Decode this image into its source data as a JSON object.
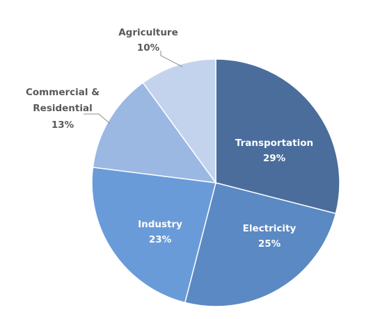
{
  "chart_data": {
    "type": "pie",
    "title": "",
    "legend": "none",
    "slices": [
      {
        "name": "Transportation",
        "value": 29,
        "label": "29%",
        "color": "#4a6d9c"
      },
      {
        "name": "Electricity",
        "value": 25,
        "label": "25%",
        "color": "#5b89c3"
      },
      {
        "name": "Industry",
        "value": 23,
        "label": "23%",
        "color": "#6a9bd9"
      },
      {
        "name": "Commercial &",
        "name_line2": "Residential",
        "value": 13,
        "label": "13%",
        "color": "#9bb8e2"
      },
      {
        "name": "Agriculture",
        "value": 10,
        "label": "10%",
        "color": "#c3d3ee"
      }
    ]
  }
}
